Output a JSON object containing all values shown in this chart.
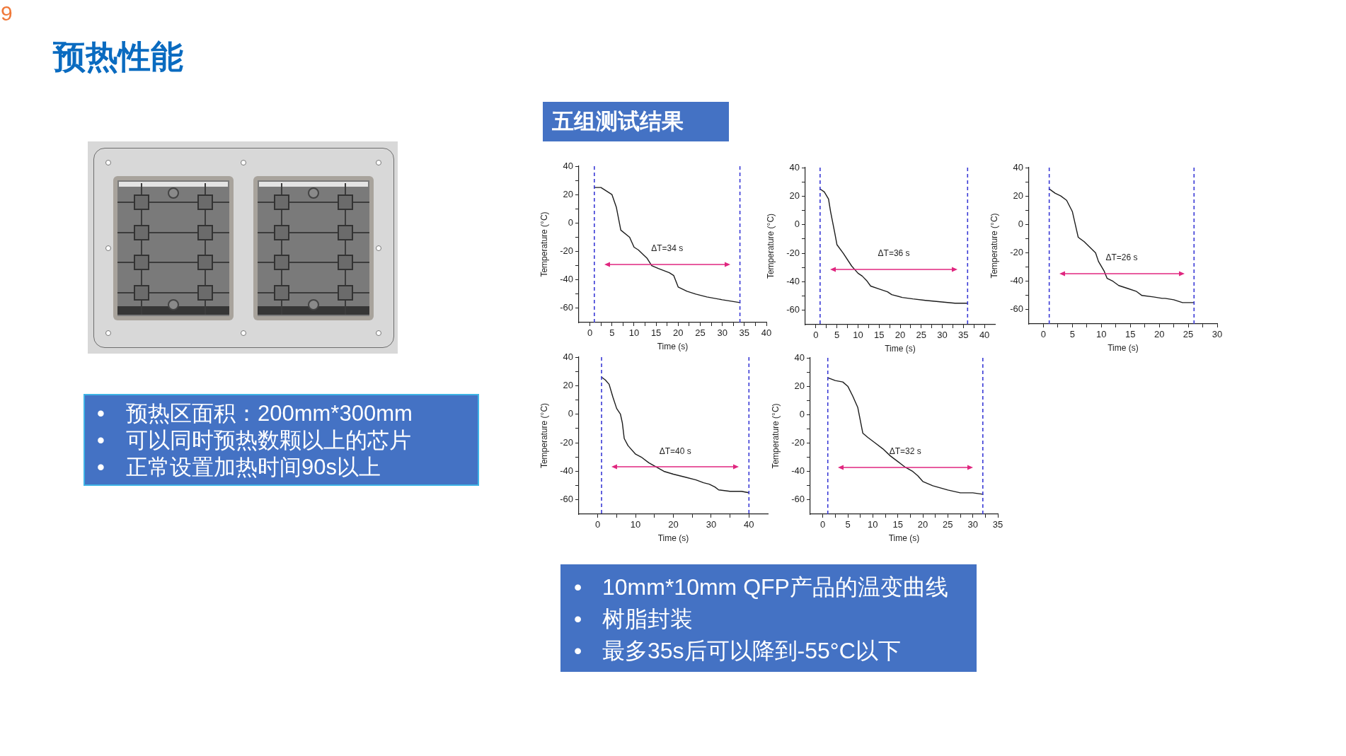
{
  "chart_data": [
    {
      "type": "other",
      "title": "预热性能",
      "annotations": [
        "9"
      ]
    },
    {
      "type": "other",
      "annotations": [
        "•\t预热区面积：200mm*300mm",
        "•\t可以同时预热数颗以上的芯片",
        "•\t正常设置加热时间90s以上"
      ]
    },
    {
      "type": "other",
      "title": "五组测试结果"
    },
    {
      "type": "line",
      "xlabel": "Time (s)",
      "ylabel": "Temperature (°C)",
      "x": [
        1,
        2.5,
        3.5,
        5,
        6,
        7,
        9,
        10,
        11,
        13,
        14,
        15.5,
        18,
        19,
        20,
        22,
        24,
        26.5,
        30,
        32,
        34
      ],
      "series": [
        {
          "color": "#1c1c1c",
          "values": [
            25,
            25,
            23,
            20,
            11,
            -5,
            -10,
            -17,
            -19,
            -25,
            -30,
            -32,
            -35,
            -37,
            -45,
            -48,
            -50,
            -52,
            -54,
            -55,
            -56
          ]
        }
      ],
      "xlim": [
        -2.5,
        40
      ],
      "xticks": [
        0,
        {
          "value": 2.5,
          "label": null
        },
        5,
        {
          "value": 7.5,
          "label": null
        },
        10,
        {
          "value": 12.5,
          "label": null
        },
        15,
        {
          "value": 17.5,
          "label": null
        },
        20,
        {
          "value": 22.5,
          "label": null
        },
        25,
        {
          "value": 27.5,
          "label": null
        },
        30,
        {
          "value": 32.5,
          "label": null
        },
        35,
        {
          "value": 37.5,
          "label": null
        },
        40
      ],
      "ylim": [
        -70,
        40
      ],
      "yticks": [
        -60,
        {
          "value": -50,
          "label": null
        },
        -40,
        {
          "value": -30,
          "label": null
        },
        -20,
        {
          "value": -10,
          "label": null
        },
        0,
        {
          "value": 10,
          "label": null
        },
        20,
        {
          "value": 30,
          "label": null
        },
        40
      ],
      "ref_lines": [
        {
          "axis": "x",
          "value": 1,
          "color": "#3a3ad6",
          "line_style": "dashed"
        },
        {
          "axis": "x",
          "value": 34,
          "color": "#3a3ad6",
          "line_style": "dashed"
        }
      ],
      "annotations": [
        "ΔT=34 s"
      ]
    },
    {
      "type": "line",
      "xlabel": "Time (s)",
      "ylabel": "Temperature (°C)",
      "x": [
        1,
        2,
        3,
        3.5,
        4.5,
        5,
        6.5,
        8.5,
        10,
        11,
        12,
        13,
        15,
        17,
        18,
        20.5,
        23,
        26,
        29.5,
        33,
        36
      ],
      "series": [
        {
          "color": "#1c1c1c",
          "values": [
            25,
            23,
            18,
            9,
            -6,
            -14,
            -20,
            -29,
            -34,
            -36,
            -39,
            -43,
            -45,
            -47,
            -49,
            -51,
            -52,
            -53,
            -54,
            -55,
            -55
          ]
        }
      ],
      "xlim": [
        -2.5,
        42.5
      ],
      "xticks": [
        0,
        {
          "value": 2.5,
          "label": null
        },
        5,
        {
          "value": 7.5,
          "label": null
        },
        10,
        {
          "value": 12.5,
          "label": null
        },
        15,
        {
          "value": 17.5,
          "label": null
        },
        20,
        {
          "value": 22.5,
          "label": null
        },
        25,
        {
          "value": 27.5,
          "label": null
        },
        30,
        {
          "value": 32.5,
          "label": null
        },
        35,
        {
          "value": 37.5,
          "label": null
        },
        40
      ],
      "ylim": [
        -70,
        40
      ],
      "yticks": [
        -60,
        {
          "value": -50,
          "label": null
        },
        -40,
        {
          "value": -30,
          "label": null
        },
        -20,
        {
          "value": -10,
          "label": null
        },
        0,
        {
          "value": 10,
          "label": null
        },
        20,
        {
          "value": 30,
          "label": null
        },
        40
      ],
      "ref_lines": [
        {
          "axis": "x",
          "value": 1,
          "color": "#3a3ad6",
          "line_style": "dashed"
        },
        {
          "axis": "x",
          "value": 36,
          "color": "#3a3ad6",
          "line_style": "dashed"
        }
      ],
      "annotations": [
        "ΔT=36 s"
      ]
    },
    {
      "type": "line",
      "xlabel": "Time (s)",
      "ylabel": "Temperature (°C)",
      "x": [
        1,
        2,
        3,
        4,
        5,
        5.5,
        6,
        7,
        8,
        9,
        9.5,
        10.5,
        11,
        12,
        13,
        14.5,
        16,
        17,
        19,
        20.5,
        21,
        22.5,
        24,
        26
      ],
      "series": [
        {
          "color": "#1c1c1c",
          "values": [
            25,
            22,
            20,
            17,
            9,
            0,
            -9,
            -12,
            -16,
            -20,
            -26,
            -33,
            -38,
            -40,
            -43,
            -45,
            -47,
            -50,
            -51,
            -52,
            -52,
            -53,
            -55,
            -55
          ]
        }
      ],
      "xlim": [
        -2.5,
        30
      ],
      "xticks": [
        0,
        {
          "value": 2.5,
          "label": null
        },
        5,
        {
          "value": 7.5,
          "label": null
        },
        10,
        {
          "value": 12.5,
          "label": null
        },
        15,
        {
          "value": 17.5,
          "label": null
        },
        20,
        {
          "value": 22.5,
          "label": null
        },
        25,
        {
          "value": 27.5,
          "label": null
        },
        30
      ],
      "ylim": [
        -70,
        40
      ],
      "yticks": [
        -60,
        {
          "value": -50,
          "label": null
        },
        -40,
        {
          "value": -30,
          "label": null
        },
        -20,
        {
          "value": -10,
          "label": null
        },
        0,
        {
          "value": 10,
          "label": null
        },
        20,
        {
          "value": 30,
          "label": null
        },
        40
      ],
      "ref_lines": [
        {
          "axis": "x",
          "value": 1,
          "color": "#3a3ad6",
          "line_style": "dashed"
        },
        {
          "axis": "x",
          "value": 26,
          "color": "#3a3ad6",
          "line_style": "dashed"
        }
      ],
      "annotations": [
        "ΔT=26 s"
      ]
    },
    {
      "type": "line",
      "xlabel": "Time (s)",
      "ylabel": "Temperature (°C)",
      "x": [
        1,
        2,
        3,
        4,
        5,
        6,
        6.5,
        7,
        8,
        10,
        11.5,
        13.5,
        15.5,
        17.5,
        20,
        23,
        26,
        28,
        29.5,
        31,
        32,
        35,
        38,
        40
      ],
      "series": [
        {
          "color": "#1c1c1c",
          "values": [
            26,
            24,
            21,
            12,
            4,
            0,
            -6,
            -17,
            -22,
            -28,
            -30,
            -34,
            -37,
            -40,
            -42,
            -44,
            -46,
            -48,
            -49,
            -51,
            -53,
            -54,
            -54,
            -55
          ]
        }
      ],
      "xlim": [
        -5,
        45
      ],
      "xticks": [
        0,
        {
          "value": 5,
          "label": null
        },
        10,
        {
          "value": 15,
          "label": null
        },
        20,
        {
          "value": 25,
          "label": null
        },
        30,
        {
          "value": 35,
          "label": null
        },
        40
      ],
      "ylim": [
        -70,
        40
      ],
      "yticks": [
        -60,
        {
          "value": -50,
          "label": null
        },
        -40,
        {
          "value": -30,
          "label": null
        },
        -20,
        {
          "value": -10,
          "label": null
        },
        0,
        {
          "value": 10,
          "label": null
        },
        20,
        {
          "value": 30,
          "label": null
        },
        40
      ],
      "ref_lines": [
        {
          "axis": "x",
          "value": 1,
          "color": "#3a3ad6",
          "line_style": "dashed"
        },
        {
          "axis": "x",
          "value": 40,
          "color": "#3a3ad6",
          "line_style": "dashed"
        }
      ],
      "annotations": [
        "ΔT=40 s"
      ]
    },
    {
      "type": "line",
      "xlabel": "Time (s)",
      "ylabel": "Temperature (°C)",
      "x": [
        1,
        2.5,
        4,
        5,
        6,
        7,
        8,
        9,
        10.5,
        12,
        13.5,
        15,
        16.5,
        18,
        19,
        20,
        22,
        23,
        25,
        27.5,
        30,
        32
      ],
      "series": [
        {
          "color": "#1c1c1c",
          "values": [
            26,
            24,
            23,
            20,
            13,
            5,
            -13,
            -16,
            -20,
            -24,
            -29,
            -33,
            -37,
            -40,
            -43,
            -47,
            -50,
            -51,
            -53,
            -55,
            -55,
            -56
          ]
        }
      ],
      "xlim": [
        -2.5,
        35
      ],
      "xticks": [
        0,
        {
          "value": 2.5,
          "label": null
        },
        5,
        {
          "value": 7.5,
          "label": null
        },
        10,
        {
          "value": 12.5,
          "label": null
        },
        15,
        {
          "value": 17.5,
          "label": null
        },
        20,
        {
          "value": 22.5,
          "label": null
        },
        25,
        {
          "value": 27.5,
          "label": null
        },
        30,
        {
          "value": 32.5,
          "label": null
        },
        35
      ],
      "ylim": [
        -70,
        40
      ],
      "yticks": [
        -60,
        {
          "value": -50,
          "label": null
        },
        -40,
        {
          "value": -30,
          "label": null
        },
        -20,
        {
          "value": -10,
          "label": null
        },
        0,
        {
          "value": 10,
          "label": null
        },
        20,
        {
          "value": 30,
          "label": null
        },
        40
      ],
      "ref_lines": [
        {
          "axis": "x",
          "value": 1,
          "color": "#3a3ad6",
          "line_style": "dashed"
        },
        {
          "axis": "x",
          "value": 32,
          "color": "#3a3ad6",
          "line_style": "dashed"
        }
      ],
      "annotations": [
        "ΔT=32 s"
      ]
    },
    {
      "type": "other",
      "annotations": [
        "•\t10mm*10mm QFP产品的温变曲线",
        "•\t树脂封装",
        "•\t最多35s后可以降到-55°C以下"
      ]
    }
  ]
}
